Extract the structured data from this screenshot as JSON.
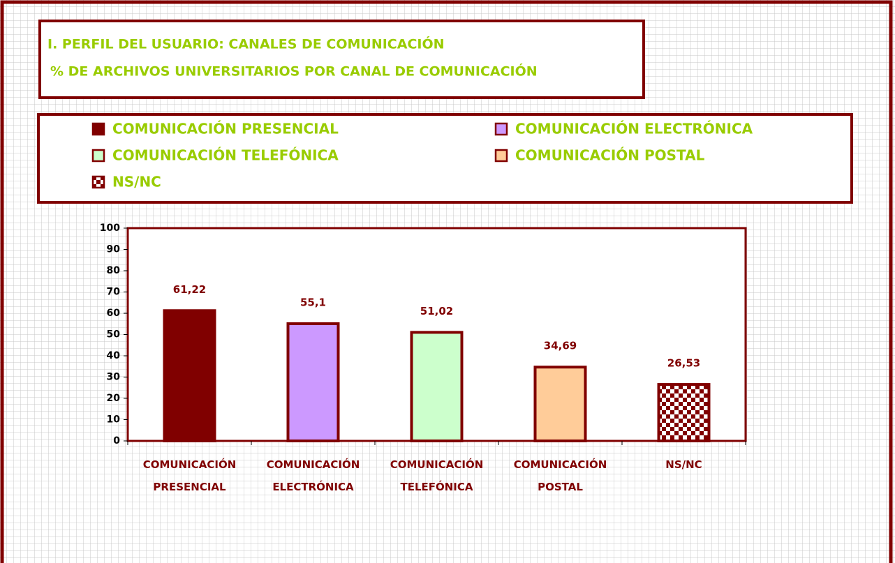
{
  "chart_data": {
    "type": "bar",
    "title": "I. PERFIL DEL USUARIO: CANALES DE COMUNICACIÓN",
    "subtitle": "% DE ARCHIVOS UNIVERSITARIOS POR CANAL DE COMUNICACIÓN",
    "categories": [
      "COMUNICACIÓN PRESENCIAL",
      "COMUNICACIÓN ELECTRÓNICA",
      "COMUNICACIÓN TELEFÓNICA",
      "COMUNICACIÓN POSTAL",
      "NS/NC"
    ],
    "values": [
      61.22,
      55.1,
      51.02,
      34.69,
      26.53
    ],
    "value_labels": [
      "61,22",
      "55,1",
      "51,02",
      "34,69",
      "26,53"
    ],
    "colors": [
      "#800000",
      "#cc99ff",
      "#ccffcc",
      "#ffcc99",
      "#800000"
    ],
    "patterns": [
      null,
      null,
      null,
      null,
      "checker"
    ],
    "ylim": [
      0,
      100
    ],
    "yticks": [
      0,
      10,
      20,
      30,
      40,
      50,
      60,
      70,
      80,
      90,
      100
    ]
  }
}
